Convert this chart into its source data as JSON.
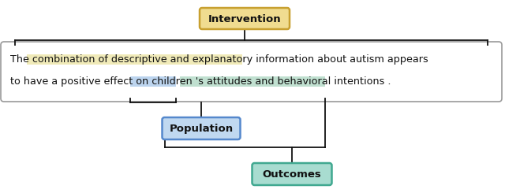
{
  "intervention_label": "Intervention",
  "population_label": "Population",
  "outcomes_label": "Outcomes",
  "line1": "The combination of descriptive and explanatory information about autism appears",
  "line2": "to have a positive effect on children ’s attitudes and behavioral intentions .",
  "line2_plain": "to have a positive effect on children 's attitudes and behavioral intentions .",
  "intervention_edge": "#c8a030",
  "intervention_face": "#f0dc90",
  "population_edge": "#5588cc",
  "population_face": "#c0d8f0",
  "outcomes_edge": "#40a890",
  "outcomes_face": "#a8dcd0",
  "sentence_edge": "#999999",
  "sentence_face": "#ffffff",
  "hl_intervention": "#f0eab8",
  "hl_population": "#bcd4ee",
  "hl_outcomes": "#c0e0d0",
  "bg": "#ffffff",
  "line_color": "#111111",
  "text_color": "#111111"
}
